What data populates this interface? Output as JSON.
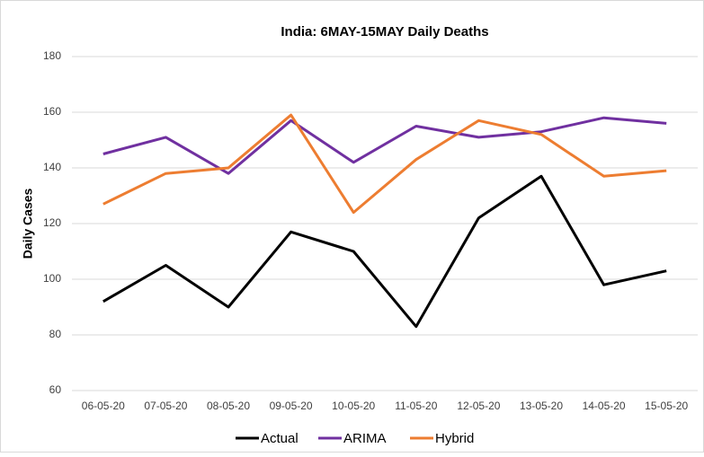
{
  "chart_data": {
    "type": "line",
    "title": "India: 6MAY-15MAY Daily Deaths",
    "y_label": "Daily Cases",
    "categories": [
      "06-05-20",
      "07-05-20",
      "08-05-20",
      "09-05-20",
      "10-05-20",
      "11-05-20",
      "12-05-20",
      "13-05-20",
      "14-05-20",
      "15-05-20"
    ],
    "series": [
      {
        "name": "Actual",
        "color": "#000000",
        "values": [
          92,
          105,
          90,
          117,
          110,
          83,
          122,
          137,
          98,
          103
        ]
      },
      {
        "name": "ARIMA",
        "color": "#7030a0",
        "values": [
          145,
          151,
          138,
          157,
          142,
          155,
          151,
          153,
          158,
          156
        ]
      },
      {
        "name": "Hybrid",
        "color": "#ed7d31",
        "values": [
          127,
          138,
          140,
          159,
          124,
          143,
          157,
          152,
          137,
          139
        ]
      }
    ],
    "ylim": [
      60,
      180
    ],
    "yticks": [
      60,
      80,
      100,
      120,
      140,
      160,
      180
    ],
    "grid": true,
    "legend": "bottom"
  }
}
